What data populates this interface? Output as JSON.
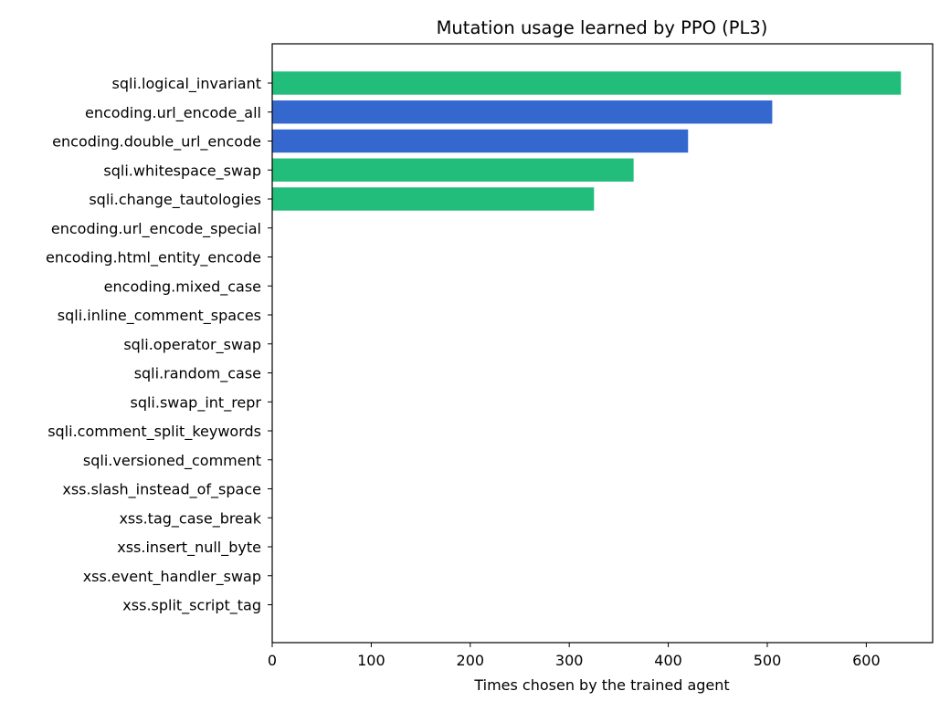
{
  "colors": {
    "sqli": "#22bd7a",
    "encoding": "#3468cf",
    "axis": "#000000",
    "background": "#ffffff"
  },
  "chart_data": {
    "type": "bar",
    "orientation": "horizontal",
    "title": "Mutation usage learned by PPO (PL3)",
    "xlabel": "Times chosen by the trained agent",
    "ylabel": "",
    "xlim": [
      0,
      667
    ],
    "xticks": [
      0,
      100,
      200,
      300,
      400,
      500,
      600
    ],
    "grid": false,
    "categories": [
      "sqli.logical_invariant",
      "encoding.url_encode_all",
      "encoding.double_url_encode",
      "sqli.whitespace_swap",
      "sqli.change_tautologies",
      "encoding.url_encode_special",
      "encoding.html_entity_encode",
      "encoding.mixed_case",
      "sqli.inline_comment_spaces",
      "sqli.operator_swap",
      "sqli.random_case",
      "sqli.swap_int_repr",
      "sqli.comment_split_keywords",
      "sqli.versioned_comment",
      "xss.slash_instead_of_space",
      "xss.tag_case_break",
      "xss.insert_null_byte",
      "xss.event_handler_swap",
      "xss.split_script_tag"
    ],
    "values": [
      635,
      505,
      420,
      365,
      325,
      0,
      0,
      0,
      0,
      0,
      0,
      0,
      0,
      0,
      0,
      0,
      0,
      0,
      0
    ],
    "bar_colors": [
      "#22bd7a",
      "#3468cf",
      "#3468cf",
      "#22bd7a",
      "#22bd7a",
      "#3468cf",
      "#3468cf",
      "#3468cf",
      "#22bd7a",
      "#22bd7a",
      "#22bd7a",
      "#22bd7a",
      "#22bd7a",
      "#22bd7a",
      "#22bd7a",
      "#22bd7a",
      "#22bd7a",
      "#22bd7a",
      "#22bd7a"
    ]
  }
}
